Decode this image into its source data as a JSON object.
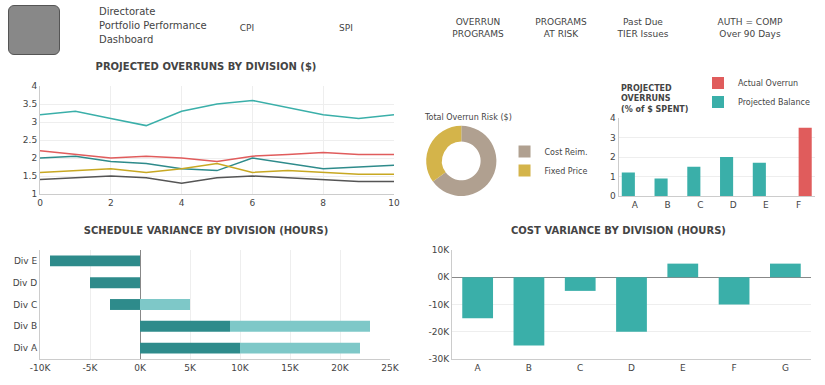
{
  "annotations": [
    "Directorate",
    "Portfolio Performance",
    "Dashboard",
    "CPI",
    "SPI",
    "OVERRUN\nPROGRAMS",
    "PROGRAMS\nAT RISK",
    "Past Due\nTIER Issues",
    "AUTH = COMP\nOver 90 Days"
  ],
  "chart_data": [
    {
      "type": "line",
      "title": "PROJECTED OVERRUNS BY DIVISION ($)",
      "x": [
        0,
        1,
        2,
        3,
        4,
        5,
        6,
        7,
        8,
        9,
        10
      ],
      "series": [
        {
          "color": "#3aafa9",
          "values": [
            3.2,
            3.3,
            3.1,
            2.9,
            3.3,
            3.5,
            3.6,
            3.4,
            3.2,
            3.1,
            3.2
          ]
        },
        {
          "color": "#e05c5c",
          "values": [
            2.2,
            2.1,
            2.0,
            2.05,
            2.0,
            1.9,
            2.05,
            2.1,
            2.15,
            2.1,
            2.1
          ]
        },
        {
          "color": "#2e8b8b",
          "values": [
            2.0,
            2.05,
            1.9,
            1.85,
            1.7,
            1.65,
            2.0,
            1.85,
            1.7,
            1.75,
            1.8
          ]
        },
        {
          "color": "#c8a822",
          "values": [
            1.6,
            1.65,
            1.7,
            1.6,
            1.7,
            1.85,
            1.6,
            1.65,
            1.6,
            1.55,
            1.55
          ]
        },
        {
          "color": "#555555",
          "values": [
            1.4,
            1.45,
            1.5,
            1.45,
            1.3,
            1.45,
            1.5,
            1.45,
            1.4,
            1.35,
            1.35
          ]
        }
      ],
      "xlim": [
        0,
        10
      ],
      "xticks": [
        0,
        2,
        4,
        6,
        8,
        10
      ],
      "ylim": [
        1,
        4
      ],
      "yticks": [
        1,
        1.5,
        2,
        2.5,
        3,
        3.5,
        4
      ],
      "grid": true
    },
    {
      "type": "donut",
      "title": "Total Overrun Risk ($)",
      "categories": [
        "Cost Reim.",
        "Fixed Price"
      ],
      "values": [
        65,
        35
      ],
      "colors": [
        "#b0a090",
        "#d4b44a"
      ],
      "legend": "right"
    },
    {
      "type": "bar",
      "title": "PROJECTED\nOVERRUNS\n(% of $ SPENT)",
      "categories": [
        "A",
        "B",
        "C",
        "D",
        "E",
        "F"
      ],
      "series": [
        {
          "name": "Projected Balance",
          "color": "#3aafa9",
          "values": [
            1.2,
            0.9,
            1.5,
            2.0,
            1.7,
            0
          ]
        },
        {
          "name": "Actual Overrun",
          "color": "#e05c5c",
          "values": [
            0,
            0,
            0,
            0,
            0,
            3.5
          ]
        }
      ],
      "ylim": [
        0,
        4
      ],
      "yticks": [
        0,
        1,
        2,
        3,
        4
      ],
      "grid": true,
      "legend": "upper right"
    },
    {
      "type": "bar",
      "title": "SCHEDULE VARIANCE BY DIVISION (HOURS)",
      "orientation": "horizontal",
      "stacked": true,
      "categories": [
        "Div A",
        "Div B",
        "Div C",
        "Div D",
        "Div E"
      ],
      "series": [
        {
          "color": "#2e8b8b",
          "values": [
            10000,
            9000,
            -3000,
            -5000,
            -9000
          ]
        },
        {
          "color": "#7ec8c8",
          "values": [
            12000,
            14000,
            5000,
            0,
            0
          ]
        }
      ],
      "xlim": [
        -10000,
        25000
      ],
      "xticks": [
        {
          "value": -10000,
          "label": "-10K"
        },
        {
          "value": -5000,
          "label": "-5K"
        },
        {
          "value": 0,
          "label": "0K"
        },
        {
          "value": 5000,
          "label": "5K"
        },
        {
          "value": 10000,
          "label": "10K"
        },
        {
          "value": 15000,
          "label": "15K"
        },
        {
          "value": 20000,
          "label": "20K"
        },
        {
          "value": 25000,
          "label": "25K"
        }
      ],
      "grid": true
    },
    {
      "type": "bar",
      "title": "COST VARIANCE BY DIVISION (HOURS)",
      "categories": [
        "A",
        "B",
        "C",
        "D",
        "E",
        "F",
        "G"
      ],
      "values": [
        -15,
        -25,
        -5,
        -20,
        5,
        -10,
        5
      ],
      "color": "#3aafa9",
      "ylim": [
        -30,
        10
      ],
      "yticks": [
        {
          "value": -30,
          "label": "-30K"
        },
        {
          "value": -20,
          "label": "-20K"
        },
        {
          "value": -10,
          "label": "-10K"
        },
        {
          "value": 0,
          "label": "0K"
        },
        {
          "value": 10,
          "label": "10K"
        }
      ],
      "grid": true
    }
  ]
}
